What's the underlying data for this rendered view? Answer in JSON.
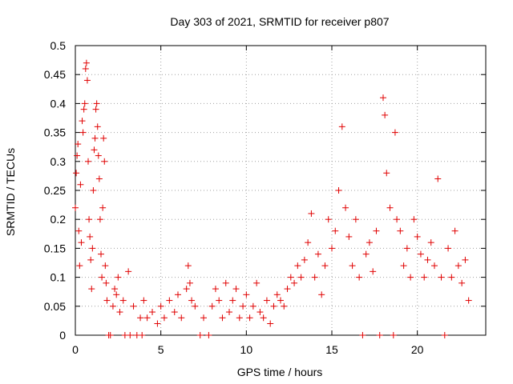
{
  "chart_data": {
    "type": "scatter",
    "title": "Day 303 of 2021, SRMTID for receiver p807",
    "xlabel": "GPS time / hours",
    "ylabel": "SRMTID / TECUs",
    "xlim": [
      0,
      24
    ],
    "ylim": [
      0,
      0.5
    ],
    "grid": true,
    "x_ticks": [
      0,
      5,
      10,
      15,
      20
    ],
    "y_ticks": [
      0,
      0.05,
      0.1,
      0.15,
      0.2,
      0.25,
      0.3,
      0.35,
      0.4,
      0.45,
      0.5
    ],
    "x_tick_labels": [
      "0",
      "5",
      "10",
      "15",
      "20"
    ],
    "y_tick_labels": [
      "0",
      "0.05",
      "0.1",
      "0.15",
      "0.2",
      "0.25",
      "0.3",
      "0.35",
      "0.4",
      "0.45",
      "0.5"
    ],
    "marker": "+",
    "color": "#e00000",
    "series": [
      {
        "name": "SRMTID",
        "points": [
          [
            0.0,
            0.22
          ],
          [
            0.05,
            0.28
          ],
          [
            0.1,
            0.31
          ],
          [
            0.15,
            0.33
          ],
          [
            0.2,
            0.18
          ],
          [
            0.25,
            0.12
          ],
          [
            0.3,
            0.26
          ],
          [
            0.35,
            0.16
          ],
          [
            0.4,
            0.37
          ],
          [
            0.45,
            0.35
          ],
          [
            0.5,
            0.39
          ],
          [
            0.55,
            0.4
          ],
          [
            0.6,
            0.46
          ],
          [
            0.65,
            0.47
          ],
          [
            0.7,
            0.44
          ],
          [
            0.75,
            0.3
          ],
          [
            0.8,
            0.2
          ],
          [
            0.85,
            0.17
          ],
          [
            0.9,
            0.13
          ],
          [
            0.95,
            0.08
          ],
          [
            1.0,
            0.15
          ],
          [
            1.05,
            0.25
          ],
          [
            1.1,
            0.32
          ],
          [
            1.15,
            0.34
          ],
          [
            1.2,
            0.39
          ],
          [
            1.25,
            0.4
          ],
          [
            1.3,
            0.36
          ],
          [
            1.35,
            0.31
          ],
          [
            1.4,
            0.27
          ],
          [
            1.45,
            0.2
          ],
          [
            1.5,
            0.14
          ],
          [
            1.55,
            0.1
          ],
          [
            1.6,
            0.22
          ],
          [
            1.65,
            0.34
          ],
          [
            1.7,
            0.3
          ],
          [
            1.75,
            0.12
          ],
          [
            1.8,
            0.09
          ],
          [
            1.85,
            0.06
          ],
          [
            1.95,
            0.0
          ],
          [
            2.05,
            0.0
          ],
          [
            2.2,
            0.05
          ],
          [
            2.3,
            0.08
          ],
          [
            2.4,
            0.07
          ],
          [
            2.5,
            0.1
          ],
          [
            2.6,
            0.04
          ],
          [
            2.8,
            0.06
          ],
          [
            2.9,
            0.0
          ],
          [
            3.1,
            0.11
          ],
          [
            3.2,
            0.0
          ],
          [
            3.4,
            0.05
          ],
          [
            3.6,
            0.0
          ],
          [
            3.8,
            0.03
          ],
          [
            3.9,
            0.0
          ],
          [
            4.0,
            0.06
          ],
          [
            4.2,
            0.03
          ],
          [
            4.5,
            0.04
          ],
          [
            4.8,
            0.02
          ],
          [
            5.0,
            0.05
          ],
          [
            5.2,
            0.03
          ],
          [
            5.5,
            0.06
          ],
          [
            5.8,
            0.04
          ],
          [
            6.0,
            0.07
          ],
          [
            6.2,
            0.03
          ],
          [
            6.5,
            0.08
          ],
          [
            6.6,
            0.12
          ],
          [
            6.7,
            0.09
          ],
          [
            6.8,
            0.06
          ],
          [
            7.0,
            0.05
          ],
          [
            7.3,
            0.0
          ],
          [
            7.5,
            0.03
          ],
          [
            7.8,
            0.0
          ],
          [
            8.0,
            0.05
          ],
          [
            8.2,
            0.08
          ],
          [
            8.4,
            0.06
          ],
          [
            8.6,
            0.03
          ],
          [
            8.8,
            0.09
          ],
          [
            9.0,
            0.04
          ],
          [
            9.2,
            0.06
          ],
          [
            9.4,
            0.08
          ],
          [
            9.6,
            0.03
          ],
          [
            9.8,
            0.05
          ],
          [
            10.0,
            0.07
          ],
          [
            10.2,
            0.03
          ],
          [
            10.4,
            0.05
          ],
          [
            10.6,
            0.09
          ],
          [
            10.8,
            0.04
          ],
          [
            11.0,
            0.03
          ],
          [
            11.2,
            0.06
          ],
          [
            11.4,
            0.02
          ],
          [
            11.6,
            0.05
          ],
          [
            11.8,
            0.07
          ],
          [
            12.0,
            0.06
          ],
          [
            12.2,
            0.05
          ],
          [
            12.4,
            0.08
          ],
          [
            12.6,
            0.1
          ],
          [
            12.8,
            0.09
          ],
          [
            13.0,
            0.12
          ],
          [
            13.2,
            0.1
          ],
          [
            13.4,
            0.13
          ],
          [
            13.6,
            0.16
          ],
          [
            13.8,
            0.21
          ],
          [
            14.0,
            0.1
          ],
          [
            14.2,
            0.14
          ],
          [
            14.4,
            0.07
          ],
          [
            14.6,
            0.12
          ],
          [
            14.8,
            0.2
          ],
          [
            15.0,
            0.15
          ],
          [
            15.2,
            0.18
          ],
          [
            15.4,
            0.25
          ],
          [
            15.6,
            0.36
          ],
          [
            15.8,
            0.22
          ],
          [
            16.0,
            0.17
          ],
          [
            16.2,
            0.12
          ],
          [
            16.4,
            0.2
          ],
          [
            16.6,
            0.1
          ],
          [
            16.8,
            0.0
          ],
          [
            17.0,
            0.14
          ],
          [
            17.2,
            0.16
          ],
          [
            17.4,
            0.11
          ],
          [
            17.6,
            0.18
          ],
          [
            17.8,
            0.0
          ],
          [
            18.0,
            0.41
          ],
          [
            18.1,
            0.38
          ],
          [
            18.2,
            0.28
          ],
          [
            18.4,
            0.22
          ],
          [
            18.6,
            0.0
          ],
          [
            18.7,
            0.35
          ],
          [
            18.8,
            0.2
          ],
          [
            19.0,
            0.18
          ],
          [
            19.2,
            0.12
          ],
          [
            19.4,
            0.15
          ],
          [
            19.6,
            0.1
          ],
          [
            19.8,
            0.2
          ],
          [
            20.0,
            0.17
          ],
          [
            20.2,
            0.14
          ],
          [
            20.4,
            0.1
          ],
          [
            20.6,
            0.13
          ],
          [
            20.8,
            0.16
          ],
          [
            21.0,
            0.12
          ],
          [
            21.2,
            0.27
          ],
          [
            21.4,
            0.1
          ],
          [
            21.6,
            0.0
          ],
          [
            21.8,
            0.15
          ],
          [
            22.0,
            0.1
          ],
          [
            22.2,
            0.18
          ],
          [
            22.4,
            0.12
          ],
          [
            22.6,
            0.09
          ],
          [
            22.8,
            0.13
          ],
          [
            23.0,
            0.06
          ]
        ]
      }
    ]
  }
}
